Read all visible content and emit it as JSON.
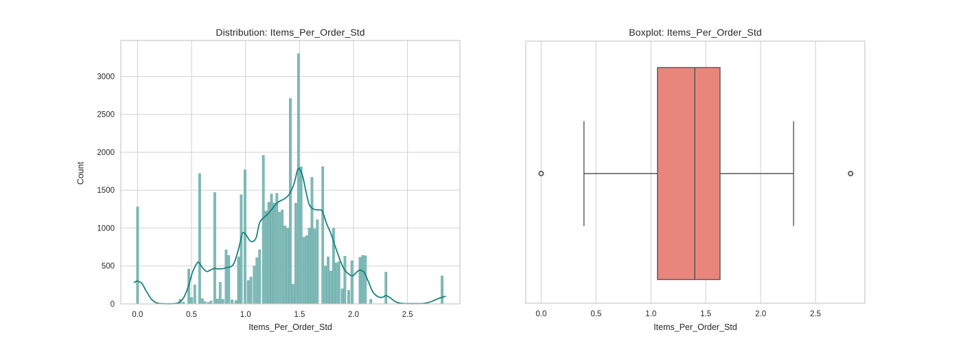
{
  "figure": {
    "background": "#ffffff",
    "grid_color": "#d2d2d2",
    "spine_color": "#c8c8c8",
    "text_color": "#262626"
  },
  "chart_data": [
    {
      "type": "bar",
      "subtype": "histogram_with_kde",
      "title": "Distribution: Items_Per_Order_Std",
      "xlabel": "Items_Per_Order_Std",
      "ylabel": "Count",
      "xlim": [
        -0.155,
        2.985
      ],
      "ylim": [
        0,
        3475
      ],
      "xticks": [
        0.0,
        0.5,
        1.0,
        1.5,
        2.0,
        2.5
      ],
      "xtick_labels": [
        "0.0",
        "0.5",
        "1.0",
        "1.5",
        "2.0",
        "2.5"
      ],
      "yticks": [
        0,
        500,
        1000,
        1500,
        2000,
        2500,
        3000
      ],
      "ytick_labels": [
        "0",
        "500",
        "1000",
        "1500",
        "2000",
        "2500",
        "3000"
      ],
      "grid": true,
      "legend": "none",
      "bin_width": 0.0254,
      "bar_color": "#7fbab7",
      "bar_edge_color": "#63a8a5",
      "kde_color": "#1a7f7f",
      "bars": [
        [
          0.0,
          1280
        ],
        [
          0.395,
          60
        ],
        [
          0.425,
          25
        ],
        [
          0.475,
          460
        ],
        [
          0.5,
          85
        ],
        [
          0.53,
          250
        ],
        [
          0.575,
          1720
        ],
        [
          0.6,
          70
        ],
        [
          0.625,
          30
        ],
        [
          0.655,
          20
        ],
        [
          0.68,
          40
        ],
        [
          0.715,
          1470
        ],
        [
          0.74,
          65
        ],
        [
          0.765,
          285
        ],
        [
          0.79,
          60
        ],
        [
          0.82,
          715
        ],
        [
          0.845,
          640
        ],
        [
          0.875,
          55
        ],
        [
          0.91,
          45
        ],
        [
          0.935,
          620
        ],
        [
          0.96,
          1440
        ],
        [
          0.995,
          1770
        ],
        [
          1.025,
          310
        ],
        [
          1.05,
          355
        ],
        [
          1.08,
          500
        ],
        [
          1.105,
          610
        ],
        [
          1.13,
          715
        ],
        [
          1.165,
          1960
        ],
        [
          1.19,
          1225
        ],
        [
          1.215,
          1340
        ],
        [
          1.24,
          1450
        ],
        [
          1.265,
          1330
        ],
        [
          1.29,
          1460
        ],
        [
          1.315,
          1210
        ],
        [
          1.34,
          1240
        ],
        [
          1.365,
          1030
        ],
        [
          1.39,
          1000
        ],
        [
          1.415,
          2710
        ],
        [
          1.44,
          260
        ],
        [
          1.465,
          1330
        ],
        [
          1.49,
          3300
        ],
        [
          1.515,
          1810
        ],
        [
          1.54,
          880
        ],
        [
          1.565,
          900
        ],
        [
          1.59,
          1000
        ],
        [
          1.615,
          1670
        ],
        [
          1.64,
          990
        ],
        [
          1.665,
          1110
        ],
        [
          1.715,
          1810
        ],
        [
          1.74,
          500
        ],
        [
          1.765,
          620
        ],
        [
          1.79,
          435
        ],
        [
          1.815,
          1000
        ],
        [
          1.84,
          540
        ],
        [
          1.865,
          560
        ],
        [
          1.895,
          200
        ],
        [
          1.92,
          630
        ],
        [
          1.955,
          180
        ],
        [
          1.985,
          570
        ],
        [
          2.06,
          615
        ],
        [
          2.085,
          640
        ],
        [
          2.11,
          635
        ],
        [
          2.16,
          60
        ],
        [
          2.3,
          420
        ],
        [
          2.82,
          370
        ]
      ],
      "kde": [
        [
          -0.03,
          285
        ],
        [
          0.0,
          300
        ],
        [
          0.04,
          270
        ],
        [
          0.08,
          170
        ],
        [
          0.13,
          60
        ],
        [
          0.18,
          12
        ],
        [
          0.25,
          2
        ],
        [
          0.32,
          2
        ],
        [
          0.38,
          15
        ],
        [
          0.43,
          90
        ],
        [
          0.47,
          230
        ],
        [
          0.51,
          420
        ],
        [
          0.55,
          535
        ],
        [
          0.57,
          545
        ],
        [
          0.6,
          480
        ],
        [
          0.64,
          428
        ],
        [
          0.68,
          450
        ],
        [
          0.71,
          468
        ],
        [
          0.75,
          462
        ],
        [
          0.79,
          465
        ],
        [
          0.83,
          482
        ],
        [
          0.87,
          495
        ],
        [
          0.9,
          560
        ],
        [
          0.94,
          750
        ],
        [
          0.97,
          928
        ],
        [
          1.0,
          918
        ],
        [
          1.04,
          835
        ],
        [
          1.07,
          825
        ],
        [
          1.1,
          880
        ],
        [
          1.13,
          1070
        ],
        [
          1.17,
          1140
        ],
        [
          1.21,
          1190
        ],
        [
          1.25,
          1260
        ],
        [
          1.29,
          1330
        ],
        [
          1.33,
          1365
        ],
        [
          1.37,
          1395
        ],
        [
          1.41,
          1460
        ],
        [
          1.45,
          1590
        ],
        [
          1.48,
          1760
        ],
        [
          1.5,
          1780
        ],
        [
          1.53,
          1680
        ],
        [
          1.56,
          1480
        ],
        [
          1.59,
          1310
        ],
        [
          1.63,
          1250
        ],
        [
          1.67,
          1240
        ],
        [
          1.71,
          1225
        ],
        [
          1.75,
          1060
        ],
        [
          1.79,
          930
        ],
        [
          1.83,
          760
        ],
        [
          1.87,
          600
        ],
        [
          1.91,
          465
        ],
        [
          1.95,
          400
        ],
        [
          1.99,
          370
        ],
        [
          2.03,
          420
        ],
        [
          2.06,
          445
        ],
        [
          2.1,
          410
        ],
        [
          2.14,
          285
        ],
        [
          2.18,
          155
        ],
        [
          2.23,
          92
        ],
        [
          2.27,
          88
        ],
        [
          2.3,
          110
        ],
        [
          2.34,
          80
        ],
        [
          2.39,
          28
        ],
        [
          2.45,
          6
        ],
        [
          2.55,
          3
        ],
        [
          2.65,
          6
        ],
        [
          2.72,
          30
        ],
        [
          2.78,
          68
        ],
        [
          2.85,
          100
        ]
      ]
    },
    {
      "type": "boxplot",
      "title": "Boxplot: Items_Per_Order_Std",
      "xlabel": "Items_Per_Order_Std",
      "xlim": [
        -0.14,
        2.95
      ],
      "xticks": [
        0.0,
        0.5,
        1.0,
        1.5,
        2.0,
        2.5
      ],
      "xtick_labels": [
        "0.0",
        "0.5",
        "1.0",
        "1.5",
        "2.0",
        "2.5"
      ],
      "grid": true,
      "stats": {
        "whisker_low": 0.39,
        "q1": 1.06,
        "median": 1.4,
        "q3": 1.63,
        "whisker_high": 2.3,
        "outliers": [
          0.0,
          2.82
        ]
      },
      "box_color": "#e9867b",
      "line_color": "#555555",
      "flier_edge_color": "#666666",
      "flier_fill_color": "#ffffff"
    }
  ]
}
